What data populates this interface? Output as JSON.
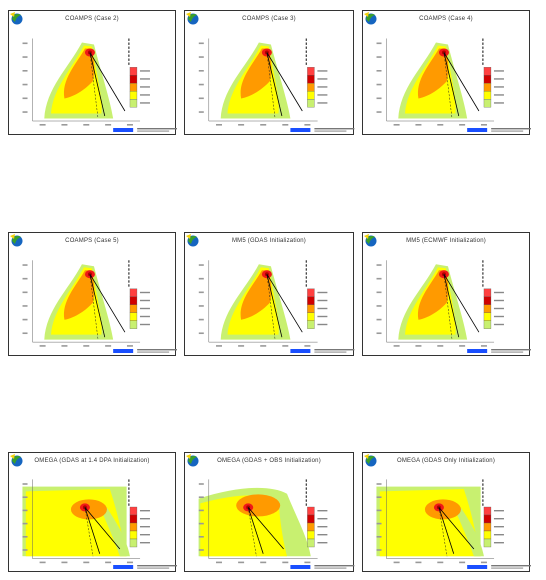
{
  "panels": [
    {
      "title": "COAMPS (Case 2)",
      "variant": "narrow"
    },
    {
      "title": "COAMPS (Case 3)",
      "variant": "narrow"
    },
    {
      "title": "COAMPS (Case 4)",
      "variant": "narrow"
    },
    {
      "title": "COAMPS (Case 5)",
      "variant": "narrow"
    },
    {
      "title": "MM5 (GDAS Initialization)",
      "variant": "narrow"
    },
    {
      "title": "MM5 (ECMWF Initialization)",
      "variant": "narrow"
    },
    {
      "title": "OMEGA (GDAS at 1.4 DPA Initialization)",
      "variant": "medium"
    },
    {
      "title": "OMEGA (GDAS + OBS Initialization)",
      "variant": "wide"
    },
    {
      "title": "OMEGA (GDAS Only Initialization)",
      "variant": "medium"
    }
  ],
  "colors": {
    "outer": "#c8f070",
    "yellow": "#ffff00",
    "orange": "#ff9a00",
    "red": "#f01818",
    "dark_red": "#b00000",
    "scale_bar": "#1a4fff",
    "logo_green": "#3aa02a",
    "logo_yellow": "#f2d20a",
    "logo_blue": "#1565c0"
  },
  "legend_colors": [
    "#ff4040",
    "#d00000",
    "#ff9a00",
    "#ffff00",
    "#c8f070"
  ],
  "icons": {
    "logo": "globe-logo-icon"
  }
}
